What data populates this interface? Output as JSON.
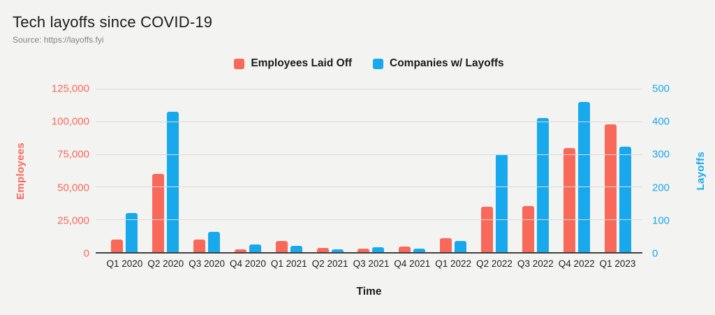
{
  "header": {
    "title": "Tech layoffs since COVID-19",
    "source": "Source: https://layoffs.fyi"
  },
  "legend": [
    {
      "label": "Employees Laid Off",
      "color": "#F8695A"
    },
    {
      "label": "Companies w/ Layoffs",
      "color": "#18A9ED"
    }
  ],
  "chart_data": {
    "type": "bar",
    "categories": [
      "Q1 2020",
      "Q2 2020",
      "Q3 2020",
      "Q4 2020",
      "Q1 2021",
      "Q2 2021",
      "Q3 2021",
      "Q4 2021",
      "Q1 2022",
      "Q2 2022",
      "Q3 2022",
      "Q4 2022",
      "Q1 2023"
    ],
    "series": [
      {
        "name": "Employees Laid Off",
        "axis": "left",
        "color": "#F8695A",
        "values": [
          9600,
          60000,
          9500,
          2100,
          8500,
          3100,
          2800,
          4100,
          10500,
          34500,
          35500,
          79500,
          97500
        ]
      },
      {
        "name": "Companies w/ Layoffs",
        "axis": "right",
        "color": "#18A9ED",
        "values": [
          120,
          430,
          61,
          24,
          20,
          9,
          15,
          11,
          34,
          300,
          410,
          460,
          322
        ]
      }
    ],
    "left_axis": {
      "title": "Employees",
      "color": "#F8695A",
      "max": 125000,
      "ticks": [
        "125,000",
        "100,000",
        "75,000",
        "50,000",
        "25,000",
        "0"
      ]
    },
    "right_axis": {
      "title": "Layoffs",
      "color": "#18A9ED",
      "max": 500,
      "ticks": [
        "500",
        "400",
        "300",
        "200",
        "100",
        "0"
      ]
    },
    "x_axis": {
      "title": "Time"
    },
    "grid": true,
    "legend_position": "top"
  },
  "colors": {
    "background": "#F3F3F1",
    "gridline": "#D9D9D9",
    "axis_line": "#3F3F3F"
  }
}
